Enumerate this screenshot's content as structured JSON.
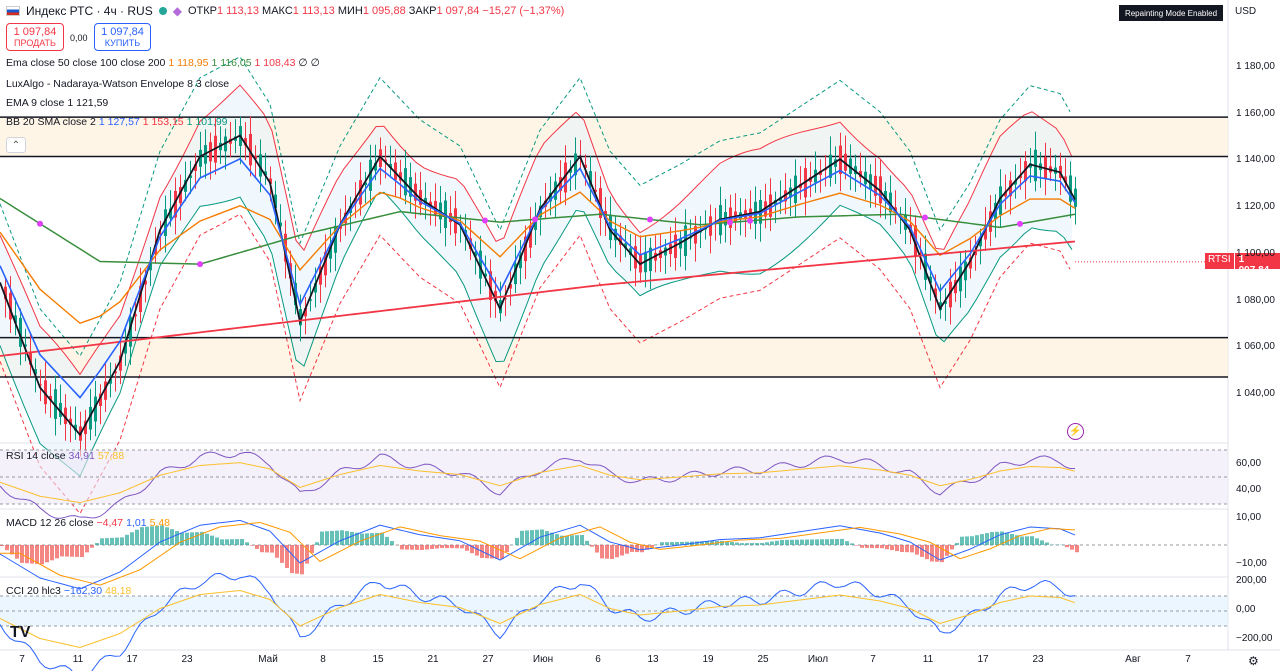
{
  "header": {
    "symbol": "Индекс РТС · 4ч · RUS",
    "open_label": "ОТКР",
    "open": "1 113,13",
    "high_label": "МАКС",
    "high": "1 113,13",
    "low_label": "МИН",
    "low": "1 095,88",
    "close_label": "ЗАКР",
    "close": "1 097,84",
    "change": "−15,27 (−1,37%)"
  },
  "trade": {
    "sell_price": "1 097,84",
    "sell_label": "ПРОДАТЬ",
    "spread": "0,00",
    "buy_price": "1 097,84",
    "buy_label": "КУПИТЬ"
  },
  "indicators": [
    {
      "name": "Ema close 50 close 100 close 200",
      "values": [
        "1 118,95",
        "1 116,05",
        "1 108,43",
        "∅",
        "∅"
      ],
      "colors": [
        "#f57c00",
        "#388e3c",
        "#f23645",
        "#131722",
        "#131722"
      ]
    },
    {
      "name": "LuxAlgo - Nadaraya-Watson Envelope 8 3 close",
      "values": [],
      "colors": []
    },
    {
      "name": "EMA 9 close",
      "values": [
        "1 121,59"
      ],
      "colors": [
        "#131722"
      ]
    },
    {
      "name": "BB 20 SMA close 2",
      "values": [
        "1 127,57",
        "1 153,15",
        "1 101,99"
      ],
      "colors": [
        "#2962ff",
        "#f23645",
        "#089981"
      ]
    }
  ],
  "top_right": {
    "repainting": "Repainting Mode Enabled",
    "currency": "USD"
  },
  "price_axis": [
    "1 180,00",
    "1 160,00",
    "1 140,00",
    "1 120,00",
    "1 100,00",
    "1 080,00",
    "1 060,00",
    "1 040,00"
  ],
  "last_price": {
    "ticker": "RTSI",
    "value": "1 097,84"
  },
  "rsi": {
    "label": "RSI 14 close",
    "v1": "34,91",
    "v2": "57,88",
    "axis": [
      "60,00",
      "40,00"
    ]
  },
  "macd": {
    "label": "MACD 12 26 close",
    "v1": "−4,47",
    "v2": "1,01",
    "v3": "5,48",
    "axis": [
      "10,00",
      "−10,00"
    ]
  },
  "cci": {
    "label": "CCI 20 hlc3",
    "v1": "−162,30",
    "v2": "48,18",
    "axis": [
      "200,00",
      "0,00",
      "−200,00"
    ]
  },
  "time_axis": [
    "7",
    "11",
    "17",
    "23",
    "Май",
    "8",
    "15",
    "21",
    "27",
    "Июн",
    "6",
    "13",
    "19",
    "25",
    "Июл",
    "7",
    "11",
    "17",
    "23",
    "Авг",
    "7"
  ],
  "chart_data": {
    "type": "line",
    "title": "Индекс РТС · 4ч · RUS",
    "ylim": [
      1030,
      1190
    ],
    "horizontal_levels": [
      1153,
      1138,
      1069,
      1054
    ],
    "series": [
      {
        "name": "EMA 9 close",
        "x": [
          0,
          40,
          80,
          120,
          160,
          200,
          240,
          270,
          300,
          340,
          380,
          420,
          460,
          500,
          540,
          580,
          610,
          640,
          680,
          720,
          760,
          800,
          840,
          880,
          910,
          940,
          970,
          1000,
          1030,
          1060,
          1075
        ],
        "values": [
          1090,
          1050,
          1032,
          1060,
          1110,
          1138,
          1146,
          1128,
          1075,
          1112,
          1138,
          1122,
          1112,
          1080,
          1118,
          1138,
          1110,
          1097,
          1105,
          1114,
          1117,
          1127,
          1137,
          1125,
          1110,
          1080,
          1098,
          1122,
          1135,
          1132,
          1121.6
        ]
      },
      {
        "name": "Ema close 100",
        "x": [
          0,
          100,
          200,
          300,
          400,
          500,
          600,
          700,
          800,
          900,
          1000,
          1075
        ],
        "values": [
          1122,
          1098,
          1097,
          1108,
          1117,
          1113,
          1116,
          1112,
          1115,
          1116,
          1111,
          1116
        ]
      }
    ]
  }
}
